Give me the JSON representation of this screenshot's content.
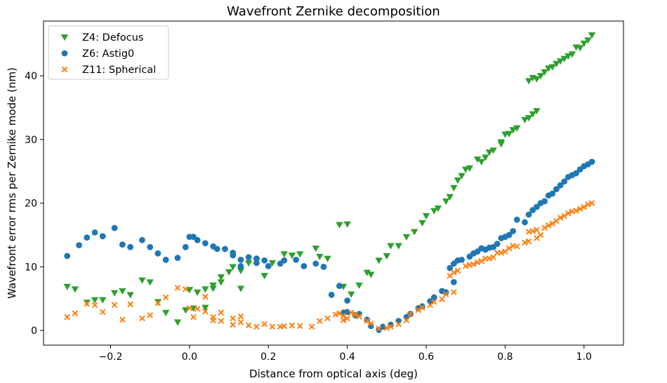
{
  "chart_data": {
    "type": "scatter",
    "title": "Wavefront Zernike decomposition",
    "xlabel": "Distance from optical axis (deg)",
    "ylabel": "Wavefront error rms per Zernike mode (nm)",
    "xlim": [
      -0.37,
      1.1
    ],
    "ylim": [
      -2.3,
      48.6
    ],
    "xticks": [
      -0.2,
      0.0,
      0.2,
      0.4,
      0.6,
      0.8,
      1.0
    ],
    "xtick_labels": [
      "−0.2",
      "0.0",
      "0.2",
      "0.4",
      "0.6",
      "0.8",
      "1.0"
    ],
    "yticks": [
      0,
      10,
      20,
      30,
      40
    ],
    "ytick_labels": [
      "0",
      "10",
      "20",
      "30",
      "40"
    ],
    "legend_position": "top-left",
    "series": [
      {
        "name": "Z4: Defocus",
        "marker": "triangle-down",
        "color": "#2ca02c",
        "points": [
          [
            -0.31,
            6.9
          ],
          [
            -0.29,
            6.5
          ],
          [
            -0.26,
            4.4
          ],
          [
            -0.24,
            4.8
          ],
          [
            -0.22,
            4.8
          ],
          [
            -0.19,
            5.9
          ],
          [
            -0.17,
            6.2
          ],
          [
            -0.15,
            5.6
          ],
          [
            -0.12,
            7.9
          ],
          [
            -0.1,
            7.6
          ],
          [
            -0.08,
            4.5
          ],
          [
            -0.06,
            2.8
          ],
          [
            -0.03,
            1.3
          ],
          [
            -0.01,
            3.2
          ],
          [
            0.0,
            6.4
          ],
          [
            0.01,
            3.5
          ],
          [
            0.02,
            6.0
          ],
          [
            0.04,
            6.5
          ],
          [
            0.04,
            3.6
          ],
          [
            0.06,
            7.1
          ],
          [
            0.06,
            6.6
          ],
          [
            0.08,
            7.6
          ],
          [
            0.08,
            8.4
          ],
          [
            0.1,
            9.2
          ],
          [
            0.11,
            10.0
          ],
          [
            0.13,
            9.4
          ],
          [
            0.13,
            6.6
          ],
          [
            0.15,
            10.6
          ],
          [
            0.17,
            10.9
          ],
          [
            0.19,
            8.6
          ],
          [
            0.21,
            10.6
          ],
          [
            0.24,
            12.0
          ],
          [
            0.26,
            11.8
          ],
          [
            0.28,
            12.0
          ],
          [
            0.32,
            12.9
          ],
          [
            0.33,
            11.6
          ],
          [
            0.35,
            11.3
          ],
          [
            0.38,
            16.6
          ],
          [
            0.39,
            6.9
          ],
          [
            0.4,
            16.7
          ],
          [
            0.41,
            5.7
          ],
          [
            0.43,
            7.1
          ],
          [
            0.45,
            9.1
          ],
          [
            0.46,
            8.8
          ],
          [
            0.48,
            11.0
          ],
          [
            0.5,
            11.7
          ],
          [
            0.51,
            13.3
          ],
          [
            0.53,
            13.3
          ],
          [
            0.55,
            14.7
          ],
          [
            0.57,
            15.5
          ],
          [
            0.59,
            16.9
          ],
          [
            0.6,
            18.0
          ],
          [
            0.62,
            18.8
          ],
          [
            0.63,
            19.2
          ],
          [
            0.65,
            20.3
          ],
          [
            0.66,
            21.0
          ],
          [
            0.67,
            22.4
          ],
          [
            0.68,
            23.6
          ],
          [
            0.69,
            24.3
          ],
          [
            0.7,
            25.3
          ],
          [
            0.71,
            25.5
          ],
          [
            0.73,
            26.9
          ],
          [
            0.74,
            26.5
          ],
          [
            0.75,
            27.2
          ],
          [
            0.76,
            28.0
          ],
          [
            0.77,
            28.3
          ],
          [
            0.79,
            29.3
          ],
          [
            0.79,
            29.6
          ],
          [
            0.8,
            30.8
          ],
          [
            0.81,
            30.9
          ],
          [
            0.82,
            31.5
          ],
          [
            0.83,
            31.8
          ],
          [
            0.85,
            33.1
          ],
          [
            0.86,
            33.4
          ],
          [
            0.87,
            34.0
          ],
          [
            0.88,
            34.5
          ],
          [
            0.86,
            39.2
          ],
          [
            0.87,
            39.7
          ],
          [
            0.88,
            39.5
          ],
          [
            0.89,
            40.0
          ],
          [
            0.9,
            40.6
          ],
          [
            0.91,
            41.2
          ],
          [
            0.92,
            41.4
          ],
          [
            0.93,
            41.9
          ],
          [
            0.94,
            42.3
          ],
          [
            0.95,
            42.7
          ],
          [
            0.96,
            43.1
          ],
          [
            0.97,
            43.4
          ],
          [
            0.98,
            44.5
          ],
          [
            0.99,
            44.4
          ],
          [
            1.0,
            45.1
          ],
          [
            1.01,
            45.6
          ],
          [
            1.02,
            46.4
          ]
        ]
      },
      {
        "name": "Z6: Astig0",
        "marker": "circle",
        "color": "#1f77b4",
        "points": [
          [
            -0.31,
            11.7
          ],
          [
            -0.28,
            13.4
          ],
          [
            -0.26,
            14.6
          ],
          [
            -0.24,
            15.4
          ],
          [
            -0.22,
            14.8
          ],
          [
            -0.19,
            16.1
          ],
          [
            -0.17,
            13.5
          ],
          [
            -0.15,
            13.1
          ],
          [
            -0.12,
            14.2
          ],
          [
            -0.1,
            13.1
          ],
          [
            -0.08,
            12.1
          ],
          [
            -0.06,
            11.1
          ],
          [
            -0.03,
            11.4
          ],
          [
            -0.01,
            13.1
          ],
          [
            0.0,
            14.7
          ],
          [
            0.01,
            14.7
          ],
          [
            0.02,
            14.2
          ],
          [
            0.04,
            13.7
          ],
          [
            0.06,
            13.2
          ],
          [
            0.07,
            12.8
          ],
          [
            0.09,
            12.8
          ],
          [
            0.11,
            12.2
          ],
          [
            0.11,
            11.8
          ],
          [
            0.13,
            11.1
          ],
          [
            0.13,
            10.1
          ],
          [
            0.15,
            11.5
          ],
          [
            0.17,
            11.3
          ],
          [
            0.17,
            10.6
          ],
          [
            0.19,
            11.0
          ],
          [
            0.2,
            10.1
          ],
          [
            0.23,
            10.5
          ],
          [
            0.24,
            11.0
          ],
          [
            0.27,
            11.1
          ],
          [
            0.29,
            10.1
          ],
          [
            0.32,
            10.5
          ],
          [
            0.34,
            10.0
          ],
          [
            0.36,
            5.6
          ],
          [
            0.38,
            7.0
          ],
          [
            0.39,
            2.8
          ],
          [
            0.4,
            2.9
          ],
          [
            0.4,
            4.7
          ],
          [
            0.42,
            2.4
          ],
          [
            0.43,
            2.6
          ],
          [
            0.45,
            1.7
          ],
          [
            0.46,
            0.7
          ],
          [
            0.48,
            0.1
          ],
          [
            0.49,
            0.6
          ],
          [
            0.51,
            0.9
          ],
          [
            0.53,
            1.5
          ],
          [
            0.55,
            2.1
          ],
          [
            0.56,
            2.6
          ],
          [
            0.58,
            3.5
          ],
          [
            0.59,
            3.8
          ],
          [
            0.61,
            4.6
          ],
          [
            0.62,
            5.2
          ],
          [
            0.64,
            6.2
          ],
          [
            0.65,
            6.0
          ],
          [
            0.66,
            9.8
          ],
          [
            0.67,
            7.6
          ],
          [
            0.67,
            10.5
          ],
          [
            0.68,
            11.0
          ],
          [
            0.69,
            11.1
          ],
          [
            0.71,
            11.6
          ],
          [
            0.72,
            12.1
          ],
          [
            0.73,
            12.4
          ],
          [
            0.74,
            12.9
          ],
          [
            0.75,
            12.7
          ],
          [
            0.76,
            13.0
          ],
          [
            0.77,
            13.1
          ],
          [
            0.78,
            13.6
          ],
          [
            0.79,
            14.5
          ],
          [
            0.8,
            14.7
          ],
          [
            0.81,
            15.0
          ],
          [
            0.82,
            15.6
          ],
          [
            0.83,
            17.4
          ],
          [
            0.85,
            17.0
          ],
          [
            0.86,
            18.2
          ],
          [
            0.87,
            18.9
          ],
          [
            0.88,
            19.4
          ],
          [
            0.89,
            20.0
          ],
          [
            0.9,
            20.3
          ],
          [
            0.91,
            21.2
          ],
          [
            0.92,
            21.5
          ],
          [
            0.93,
            22.2
          ],
          [
            0.94,
            22.8
          ],
          [
            0.95,
            23.4
          ],
          [
            0.96,
            24.1
          ],
          [
            0.97,
            24.4
          ],
          [
            0.98,
            24.7
          ],
          [
            0.99,
            25.3
          ],
          [
            1.0,
            25.8
          ],
          [
            1.01,
            26.1
          ],
          [
            1.02,
            26.5
          ]
        ]
      },
      {
        "name": "Z11: Spherical",
        "marker": "x",
        "color": "#ff7f0e",
        "points": [
          [
            -0.31,
            2.1
          ],
          [
            -0.29,
            2.7
          ],
          [
            -0.26,
            4.2
          ],
          [
            -0.24,
            4.0
          ],
          [
            -0.22,
            2.9
          ],
          [
            -0.19,
            4.0
          ],
          [
            -0.17,
            1.7
          ],
          [
            -0.15,
            4.1
          ],
          [
            -0.12,
            1.9
          ],
          [
            -0.1,
            2.4
          ],
          [
            -0.08,
            4.3
          ],
          [
            -0.06,
            5.2
          ],
          [
            -0.03,
            6.7
          ],
          [
            -0.01,
            6.5
          ],
          [
            0.0,
            3.5
          ],
          [
            0.01,
            2.1
          ],
          [
            0.02,
            3.4
          ],
          [
            0.04,
            5.3
          ],
          [
            0.04,
            3.0
          ],
          [
            0.06,
            2.1
          ],
          [
            0.06,
            1.6
          ],
          [
            0.08,
            1.5
          ],
          [
            0.08,
            2.8
          ],
          [
            0.11,
            1.9
          ],
          [
            0.11,
            0.9
          ],
          [
            0.13,
            2.2
          ],
          [
            0.13,
            1.3
          ],
          [
            0.15,
            0.8
          ],
          [
            0.17,
            0.6
          ],
          [
            0.19,
            1.0
          ],
          [
            0.21,
            0.6
          ],
          [
            0.23,
            0.6
          ],
          [
            0.24,
            0.7
          ],
          [
            0.26,
            0.8
          ],
          [
            0.28,
            0.7
          ],
          [
            0.31,
            0.6
          ],
          [
            0.33,
            1.5
          ],
          [
            0.35,
            1.9
          ],
          [
            0.37,
            2.5
          ],
          [
            0.38,
            2.7
          ],
          [
            0.39,
            2.3
          ],
          [
            0.39,
            1.6
          ],
          [
            0.4,
            1.9
          ],
          [
            0.41,
            2.8
          ],
          [
            0.42,
            2.5
          ],
          [
            0.43,
            2.2
          ],
          [
            0.45,
            1.5
          ],
          [
            0.46,
            1.1
          ],
          [
            0.48,
            0.3
          ],
          [
            0.5,
            0.4
          ],
          [
            0.51,
            0.6
          ],
          [
            0.53,
            1.0
          ],
          [
            0.55,
            1.6
          ],
          [
            0.56,
            2.6
          ],
          [
            0.58,
            3.2
          ],
          [
            0.59,
            3.6
          ],
          [
            0.61,
            4.0
          ],
          [
            0.62,
            4.5
          ],
          [
            0.64,
            4.9
          ],
          [
            0.65,
            5.7
          ],
          [
            0.66,
            8.6
          ],
          [
            0.67,
            6.0
          ],
          [
            0.67,
            9.1
          ],
          [
            0.68,
            9.4
          ],
          [
            0.7,
            10.1
          ],
          [
            0.71,
            10.3
          ],
          [
            0.72,
            10.4
          ],
          [
            0.73,
            10.7
          ],
          [
            0.74,
            10.9
          ],
          [
            0.75,
            11.3
          ],
          [
            0.76,
            11.3
          ],
          [
            0.77,
            11.5
          ],
          [
            0.78,
            12.2
          ],
          [
            0.79,
            12.2
          ],
          [
            0.8,
            12.4
          ],
          [
            0.81,
            12.9
          ],
          [
            0.82,
            13.3
          ],
          [
            0.83,
            13.2
          ],
          [
            0.85,
            13.8
          ],
          [
            0.86,
            15.5
          ],
          [
            0.86,
            14.0
          ],
          [
            0.87,
            15.6
          ],
          [
            0.88,
            14.5
          ],
          [
            0.88,
            15.8
          ],
          [
            0.89,
            15.0
          ],
          [
            0.9,
            16.1
          ],
          [
            0.91,
            16.5
          ],
          [
            0.92,
            16.8
          ],
          [
            0.93,
            17.2
          ],
          [
            0.94,
            17.7
          ],
          [
            0.95,
            18.0
          ],
          [
            0.96,
            18.4
          ],
          [
            0.97,
            18.7
          ],
          [
            0.98,
            18.8
          ],
          [
            0.99,
            19.1
          ],
          [
            1.0,
            19.4
          ],
          [
            1.01,
            19.8
          ],
          [
            1.02,
            20.0
          ]
        ]
      }
    ]
  }
}
